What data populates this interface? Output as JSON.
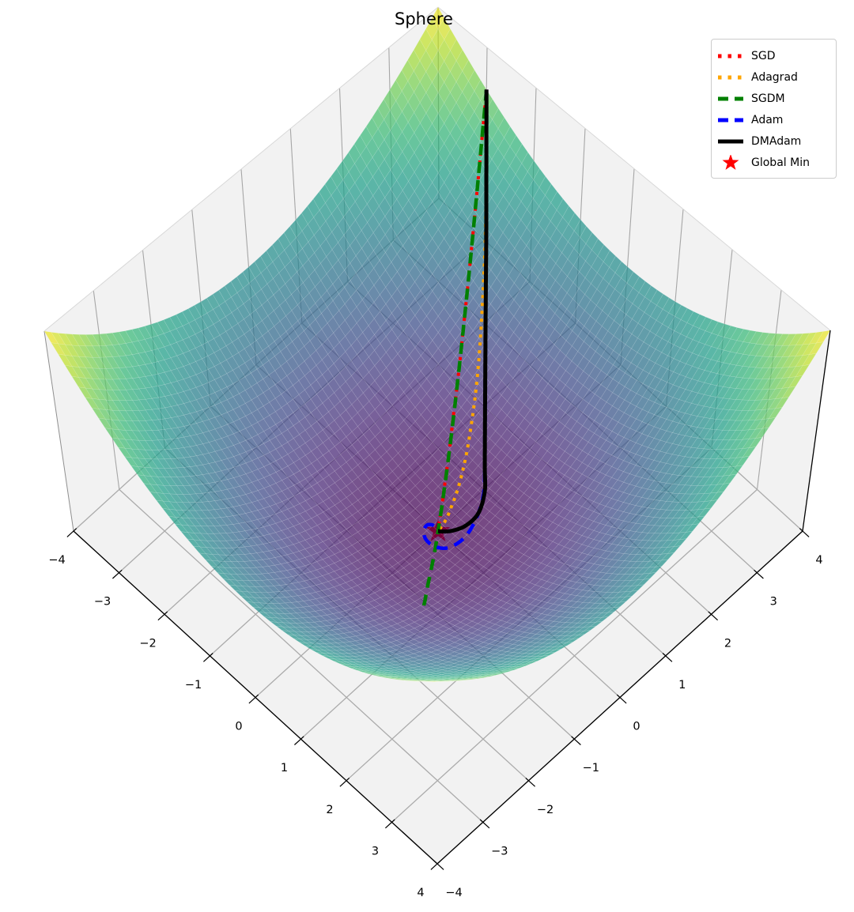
{
  "title": "Sphere",
  "colors": {
    "background": "#ffffff",
    "pane": "#f2f2f2",
    "floor_grid": "#ababab",
    "wall_grid": "#a6a6a6",
    "pane_edge": "#8f8f8f",
    "pane_top_edge": "#d8d8d8",
    "axis_line": "#000000",
    "tick_label": "#000000"
  },
  "chart_data": {
    "type": "surface3d",
    "title": "Sphere",
    "function": "f(x,y) = x^2 + y^2",
    "x_range": [
      -4,
      4
    ],
    "y_range": [
      -4,
      4
    ],
    "z_range": [
      0,
      32
    ],
    "x_ticks": [
      -4,
      -3,
      -2,
      -1,
      0,
      1,
      2,
      3,
      4
    ],
    "y_ticks": [
      -4,
      -3,
      -2,
      -1,
      0,
      1,
      2,
      3,
      4
    ],
    "grid": true,
    "colormap": "viridis",
    "surface_alpha": 0.72,
    "mesh_divisions": 64,
    "start_point": [
      -3,
      4
    ],
    "global_min": {
      "x": 0,
      "y": 0,
      "z": 0,
      "label": "Global Min",
      "color": "#ff0000",
      "marker": "star"
    },
    "series": [
      {
        "name": "SGD",
        "color": "#ff0000",
        "style": "dotted",
        "width": 4,
        "points": [
          [
            -3,
            4
          ],
          [
            -2.64,
            3.52
          ],
          [
            -2.28,
            3.04
          ],
          [
            -1.92,
            2.56
          ],
          [
            -1.59,
            2.12
          ],
          [
            -1.26,
            1.68
          ],
          [
            -0.98,
            1.3
          ],
          [
            -0.72,
            0.96
          ],
          [
            -0.5,
            0.66
          ],
          [
            -0.3,
            0.4
          ],
          [
            -0.15,
            0.2
          ],
          [
            -0.05,
            0.06
          ],
          [
            0,
            0
          ]
        ]
      },
      {
        "name": "Adagrad",
        "color": "#ffa500",
        "style": "dotted",
        "width": 4,
        "points": [
          [
            -3,
            4
          ],
          [
            -2.67,
            3.68
          ],
          [
            -2.35,
            3.36
          ],
          [
            -2.04,
            3.04
          ],
          [
            -1.75,
            2.72
          ],
          [
            -1.47,
            2.4
          ],
          [
            -1.2,
            2.08
          ],
          [
            -0.95,
            1.76
          ],
          [
            -0.72,
            1.44
          ],
          [
            -0.53,
            1.16
          ],
          [
            -0.36,
            0.88
          ],
          [
            -0.23,
            0.64
          ],
          [
            -0.14,
            0.44
          ],
          [
            -0.07,
            0.28
          ],
          [
            -0.03,
            0.16
          ],
          [
            -0.01,
            0.06
          ],
          [
            0,
            0
          ]
        ]
      },
      {
        "name": "SGDM",
        "color": "#008000",
        "style": "dashed",
        "width": 4.5,
        "points": [
          [
            -3,
            4
          ],
          [
            -2.52,
            3.36
          ],
          [
            -2.04,
            2.72
          ],
          [
            -1.56,
            2.08
          ],
          [
            -1.11,
            1.48
          ],
          [
            -0.69,
            0.92
          ],
          [
            -0.33,
            0.44
          ],
          [
            -0.03,
            0.04
          ],
          [
            0.24,
            -0.32
          ],
          [
            0.48,
            -0.65
          ],
          [
            0.68,
            -0.92
          ],
          [
            0.84,
            -1.12
          ],
          [
            0.95,
            -1.27
          ]
        ]
      },
      {
        "name": "Adam",
        "color": "#0000ff",
        "style": "dashed",
        "width": 4.5,
        "points": [
          [
            -3,
            4
          ],
          [
            -2.55,
            3.56
          ],
          [
            -2.1,
            3.12
          ],
          [
            -1.65,
            2.67
          ],
          [
            -1.2,
            2.22
          ],
          [
            -0.8,
            1.82
          ],
          [
            -0.45,
            1.47
          ],
          [
            -0.15,
            1.17
          ],
          [
            0.1,
            0.9
          ],
          [
            0.28,
            0.58
          ],
          [
            0.38,
            0.22
          ],
          [
            0.33,
            -0.08
          ],
          [
            0.17,
            -0.22
          ],
          [
            -0.02,
            -0.24
          ],
          [
            -0.15,
            -0.16
          ],
          [
            -0.19,
            -0.05
          ],
          [
            -0.11,
            0.02
          ],
          [
            0,
            0
          ]
        ]
      },
      {
        "name": "DMAdam",
        "color": "#000000",
        "style": "solid",
        "width": 5,
        "points": [
          [
            -3,
            4
          ],
          [
            -2.55,
            3.56
          ],
          [
            -2.1,
            3.12
          ],
          [
            -1.65,
            2.67
          ],
          [
            -1.2,
            2.22
          ],
          [
            -0.8,
            1.82
          ],
          [
            -0.45,
            1.47
          ],
          [
            -0.15,
            1.17
          ],
          [
            0.1,
            0.92
          ],
          [
            0.26,
            0.62
          ],
          [
            0.25,
            0.35
          ],
          [
            0.15,
            0.15
          ],
          [
            0.05,
            0.04
          ],
          [
            0,
            0
          ]
        ]
      }
    ]
  },
  "legend": {
    "items": [
      {
        "label": "SGD",
        "color": "#ff0000",
        "style": "dotted"
      },
      {
        "label": "Adagrad",
        "color": "#ffa500",
        "style": "dotted"
      },
      {
        "label": "SGDM",
        "color": "#008000",
        "style": "dashed"
      },
      {
        "label": "Adam",
        "color": "#0000ff",
        "style": "dashed"
      },
      {
        "label": "DMAdam",
        "color": "#000000",
        "style": "solid"
      },
      {
        "label": "Global Min",
        "color": "#ff0000",
        "style": "star"
      }
    ]
  }
}
